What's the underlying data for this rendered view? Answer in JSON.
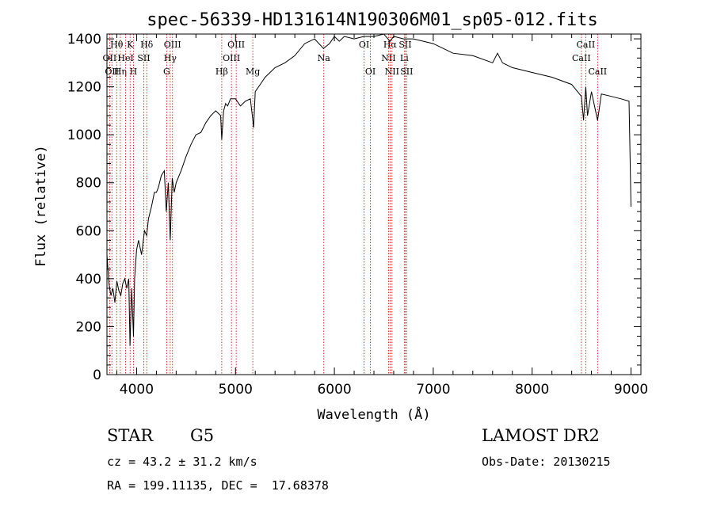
{
  "chart_data": {
    "type": "line",
    "title": "spec-56339-HD131614N190306M01_sp05-012.fits",
    "xlabel": "Wavelength (Å)",
    "ylabel": "Flux (relative)",
    "xlim": [
      3700,
      9100
    ],
    "ylim": [
      0,
      1420
    ],
    "xticks": [
      4000,
      5000,
      6000,
      7000,
      8000,
      9000
    ],
    "yticks": [
      0,
      200,
      400,
      600,
      800,
      1000,
      1200,
      1400
    ],
    "grid": false,
    "line_color": "#000000",
    "marker_color": "#cc0000",
    "series": [
      {
        "x": [
          3700,
          3720,
          3740,
          3760,
          3780,
          3800,
          3820,
          3840,
          3860,
          3880,
          3900,
          3920,
          3933,
          3950,
          3968,
          3980,
          4000,
          4020,
          4050,
          4080,
          4101,
          4120,
          4150,
          4180,
          4200,
          4220,
          4250,
          4280,
          4300,
          4320,
          4340,
          4360,
          4380,
          4400,
          4450,
          4500,
          4550,
          4600,
          4650,
          4700,
          4750,
          4800,
          4850,
          4861,
          4880,
          4900,
          4920,
          4950,
          5000,
          5050,
          5100,
          5150,
          5170,
          5183,
          5200,
          5250,
          5300,
          5400,
          5500,
          5600,
          5700,
          5800,
          5890,
          5950,
          6000,
          6050,
          6100,
          6200,
          6300,
          6400,
          6500,
          6563,
          6600,
          6700,
          6800,
          7000,
          7200,
          7400,
          7600,
          7650,
          7700,
          7800,
          8000,
          8200,
          8400,
          8498,
          8520,
          8542,
          8560,
          8600,
          8662,
          8700,
          8800,
          8900,
          8980,
          9000
        ],
        "values": [
          500,
          380,
          330,
          360,
          300,
          390,
          350,
          330,
          380,
          400,
          360,
          400,
          120,
          360,
          160,
          400,
          520,
          560,
          500,
          600,
          580,
          650,
          700,
          760,
          760,
          780,
          830,
          850,
          680,
          800,
          560,
          820,
          760,
          800,
          850,
          910,
          960,
          1000,
          1010,
          1050,
          1080,
          1100,
          1080,
          980,
          1100,
          1130,
          1120,
          1150,
          1150,
          1120,
          1140,
          1150,
          1080,
          1030,
          1180,
          1210,
          1240,
          1280,
          1300,
          1330,
          1380,
          1400,
          1360,
          1380,
          1410,
          1390,
          1410,
          1400,
          1410,
          1410,
          1420,
          1390,
          1410,
          1400,
          1400,
          1380,
          1340,
          1330,
          1300,
          1340,
          1300,
          1280,
          1260,
          1240,
          1210,
          1160,
          1060,
          1200,
          1080,
          1180,
          1060,
          1170,
          1160,
          1150,
          1140,
          700
        ]
      }
    ],
    "lines": [
      {
        "wl": 3727,
        "label": "OII",
        "row": 1
      },
      {
        "wl": 3750,
        "label": "OII",
        "row": 2
      },
      {
        "wl": 3798,
        "label": "Hθ",
        "row": 0
      },
      {
        "wl": 3835,
        "label": "Hη",
        "row": 2
      },
      {
        "wl": 3889,
        "label": "HeI",
        "row": 1
      },
      {
        "wl": 3934,
        "label": "K",
        "row": 0
      },
      {
        "wl": 3968,
        "label": "H",
        "row": 2
      },
      {
        "wl": 4072,
        "label": "SII",
        "row": 1
      },
      {
        "wl": 4102,
        "label": "Hδ",
        "row": 0
      },
      {
        "wl": 4304,
        "label": "G",
        "row": 2
      },
      {
        "wl": 4340,
        "label": "Hγ",
        "row": 1
      },
      {
        "wl": 4363,
        "label": "OIII",
        "row": 0
      },
      {
        "wl": 4861,
        "label": "Hβ",
        "row": 2
      },
      {
        "wl": 4959,
        "label": "OIII",
        "row": 1
      },
      {
        "wl": 5007,
        "label": "OIII",
        "row": 0
      },
      {
        "wl": 5175,
        "label": "Mg",
        "row": 2
      },
      {
        "wl": 5893,
        "label": "Na",
        "row": 1
      },
      {
        "wl": 6300,
        "label": "OI",
        "row": 0
      },
      {
        "wl": 6364,
        "label": "OI",
        "row": 2
      },
      {
        "wl": 6548,
        "label": "NII",
        "row": 1
      },
      {
        "wl": 6563,
        "label": "Hα",
        "row": 0
      },
      {
        "wl": 6583,
        "label": "NII",
        "row": 2
      },
      {
        "wl": 6707,
        "label": "Li",
        "row": 1
      },
      {
        "wl": 6716,
        "label": "SII",
        "row": 0
      },
      {
        "wl": 6731,
        "label": "SII",
        "row": 2
      },
      {
        "wl": 8498,
        "label": "CaII",
        "row": 1
      },
      {
        "wl": 8542,
        "label": "CaII",
        "row": 0
      },
      {
        "wl": 8662,
        "label": "CaII",
        "row": 2
      }
    ]
  },
  "info": {
    "class": "STAR",
    "subclass": "G5",
    "survey": "LAMOST DR2",
    "cz": "cz = 43.2 ± 31.2 km/s",
    "obs_date": "Obs-Date: 20130215",
    "coords": "RA = 199.11135, DEC =  17.68378"
  }
}
